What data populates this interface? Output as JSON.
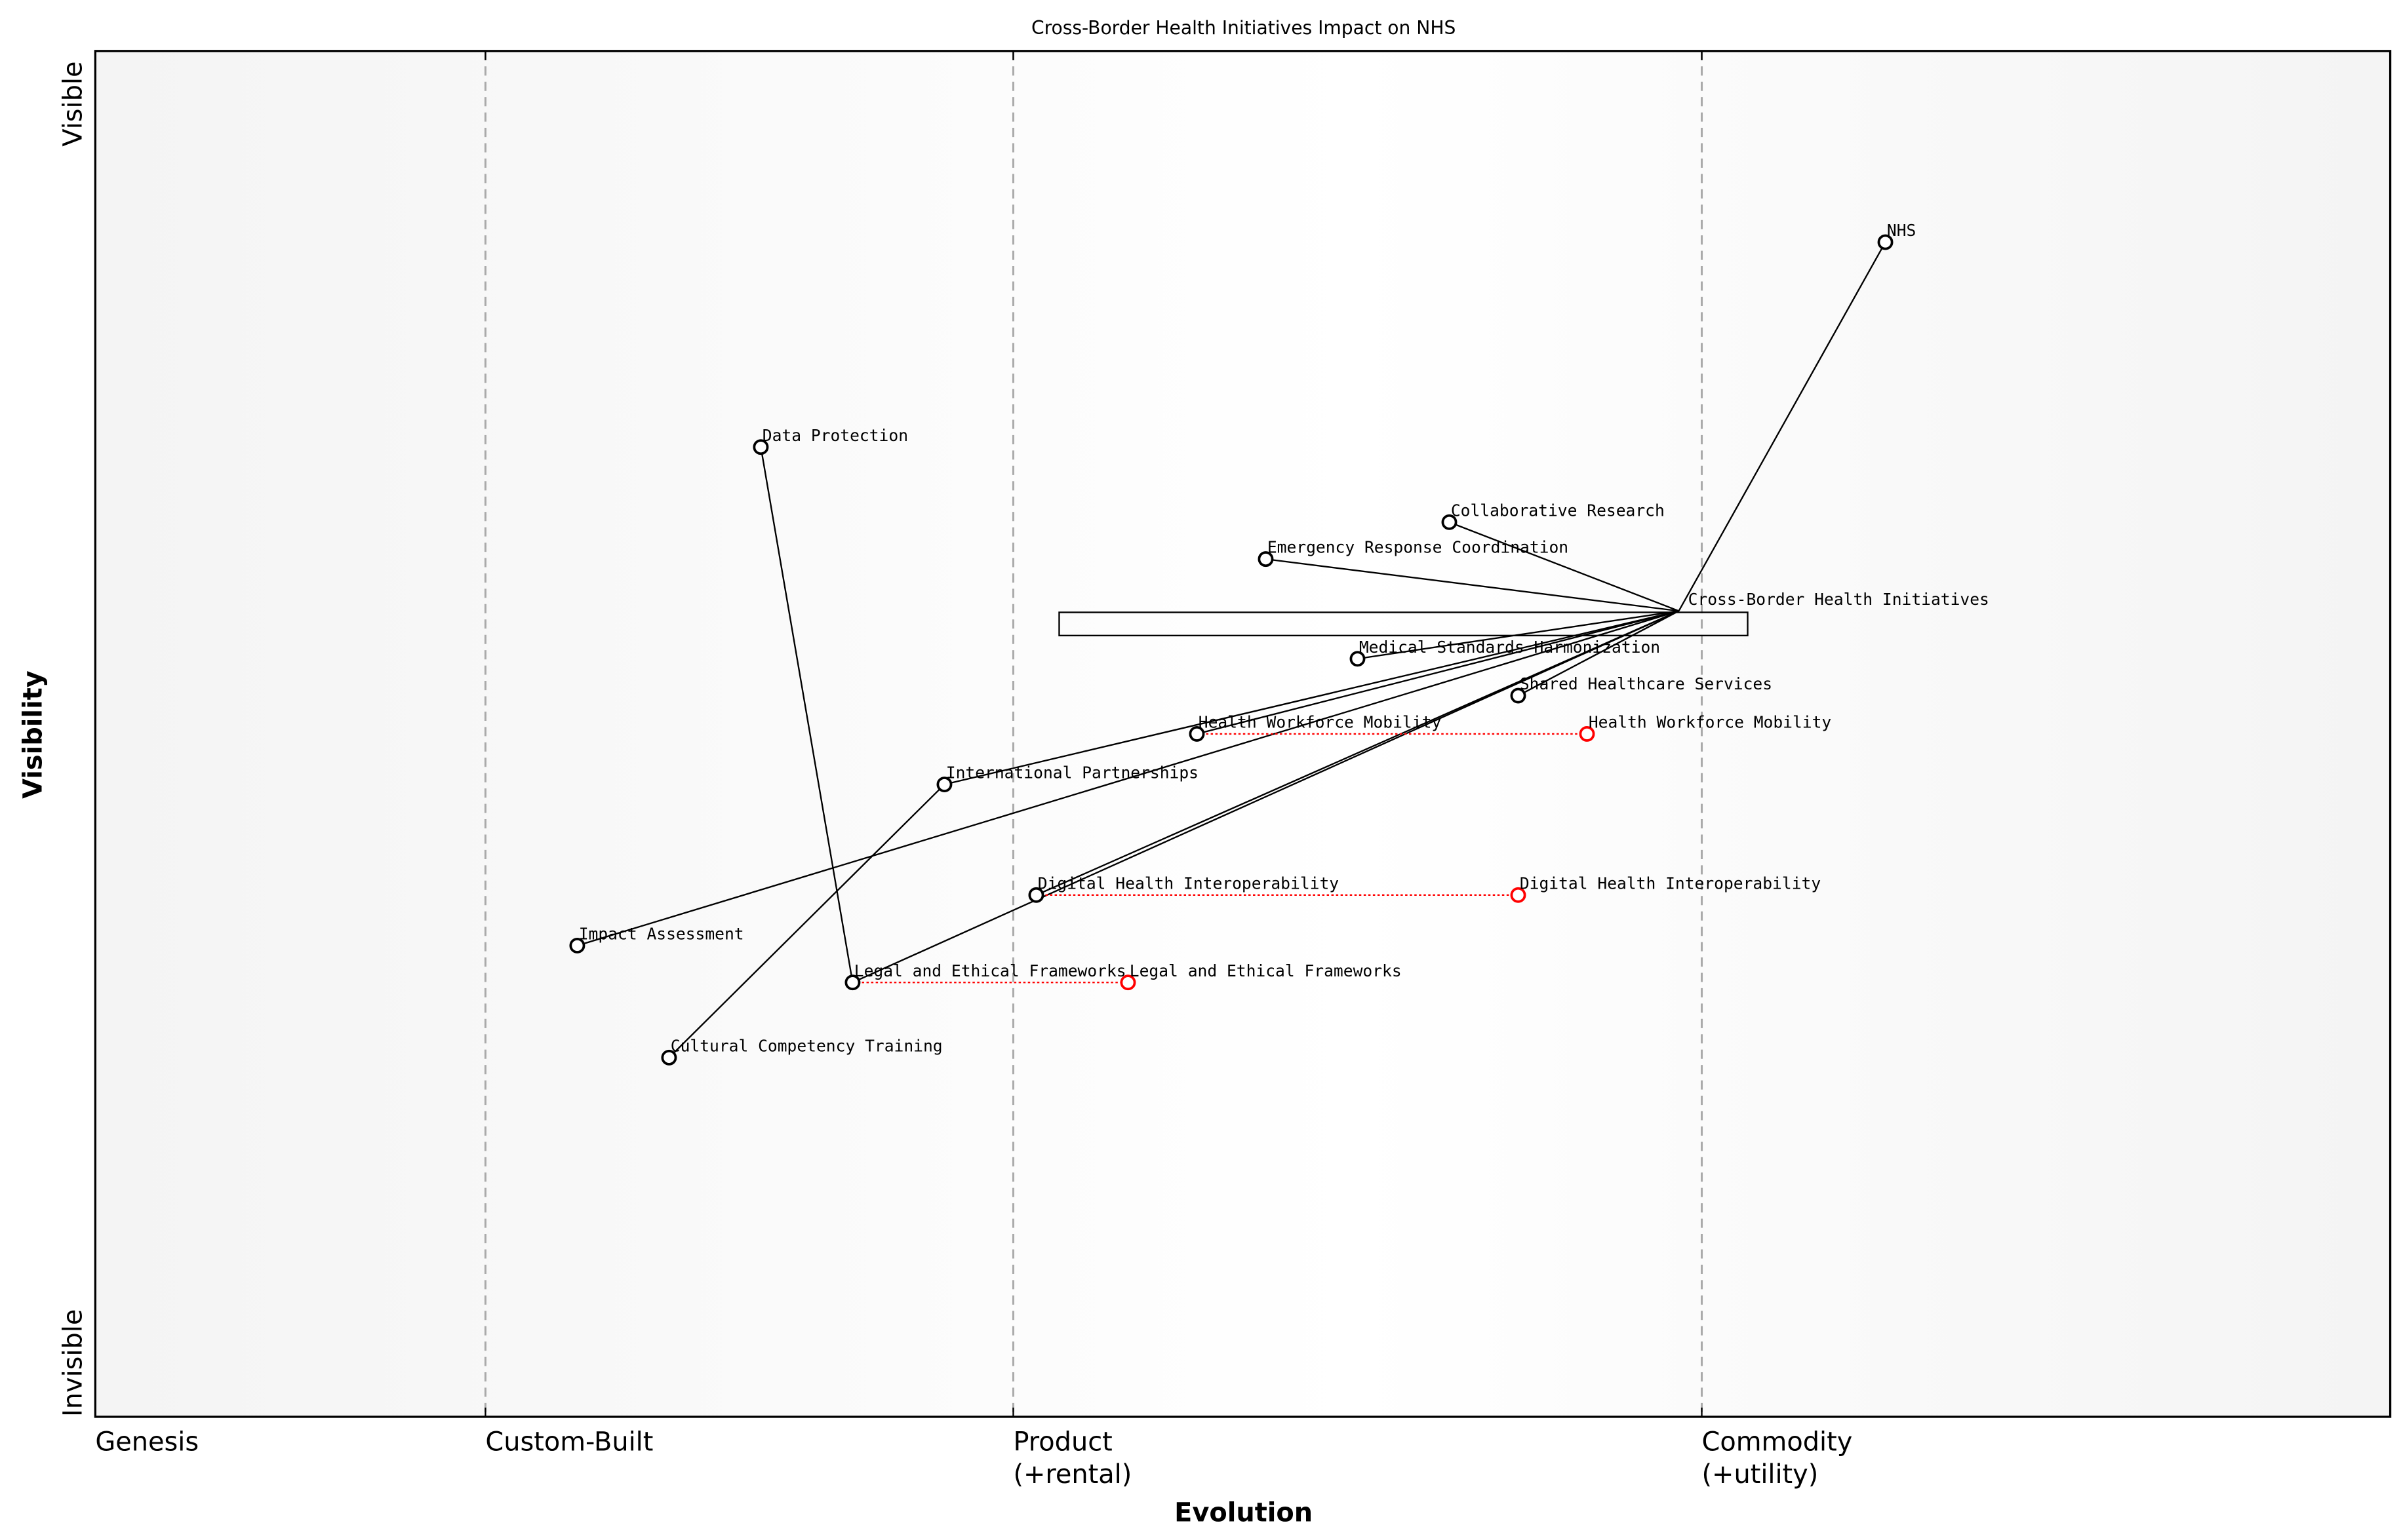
{
  "chart_data": {
    "type": "wardley-map",
    "title": "Cross-Border Health Initiatives Impact on NHS",
    "xlabel": "Evolution",
    "ylabel": "Visibility",
    "xlim": [
      0,
      1
    ],
    "ylim": [
      0,
      1
    ],
    "y_ticks": [
      {
        "value": 0.0,
        "label": "Invisible"
      },
      {
        "value": 0.95,
        "label": "Visible"
      }
    ],
    "stages": [
      {
        "value": 0.0,
        "label": "Genesis"
      },
      {
        "value": 0.17,
        "label": "Custom-Built"
      },
      {
        "value": 0.4,
        "label": "Product\n(+rental)"
      },
      {
        "value": 0.7,
        "label": "Commodity\n(+utility)"
      }
    ],
    "components": [
      {
        "id": "nhs",
        "name": "NHS",
        "evolution": 0.78,
        "visibility": 0.86
      },
      {
        "id": "cbhi",
        "name": "Cross-Border Health Initiatives",
        "evolution": 0.69,
        "visibility": 0.59,
        "marker": false
      },
      {
        "id": "dp",
        "name": "Data Protection",
        "evolution": 0.29,
        "visibility": 0.71
      },
      {
        "id": "cr",
        "name": "Collaborative Research",
        "evolution": 0.59,
        "visibility": 0.655
      },
      {
        "id": "erc",
        "name": "Emergency Response Coordination",
        "evolution": 0.51,
        "visibility": 0.628
      },
      {
        "id": "msh",
        "name": "Medical Standards Harmonization",
        "evolution": 0.55,
        "visibility": 0.555
      },
      {
        "id": "shs",
        "name": "Shared Healthcare Services",
        "evolution": 0.62,
        "visibility": 0.528
      },
      {
        "id": "hwm",
        "name": "Health Workforce Mobility",
        "evolution": 0.48,
        "visibility": 0.5
      },
      {
        "id": "ip",
        "name": "International Partnerships",
        "evolution": 0.37,
        "visibility": 0.463
      },
      {
        "id": "dhi",
        "name": "Digital Health Interoperability",
        "evolution": 0.41,
        "visibility": 0.382
      },
      {
        "id": "ia",
        "name": "Impact Assessment",
        "evolution": 0.21,
        "visibility": 0.345
      },
      {
        "id": "lef",
        "name": "Legal and Ethical Frameworks",
        "evolution": 0.33,
        "visibility": 0.318
      },
      {
        "id": "cct",
        "name": "Cultural Competency Training",
        "evolution": 0.25,
        "visibility": 0.263
      }
    ],
    "links": [
      [
        "nhs",
        "cbhi"
      ],
      [
        "cbhi",
        "cr"
      ],
      [
        "cbhi",
        "erc"
      ],
      [
        "cbhi",
        "msh"
      ],
      [
        "cbhi",
        "shs"
      ],
      [
        "cbhi",
        "hwm"
      ],
      [
        "cbhi",
        "ip"
      ],
      [
        "cbhi",
        "ia"
      ],
      [
        "cbhi",
        "dhi"
      ],
      [
        "cbhi",
        "lef"
      ],
      [
        "lef",
        "dp"
      ],
      [
        "ip",
        "cct"
      ]
    ],
    "evolutions": [
      {
        "name": "Health Workforce Mobility",
        "from": 0.48,
        "to": 0.65,
        "visibility": 0.5
      },
      {
        "name": "Digital Health Interoperability",
        "from": 0.41,
        "to": 0.62,
        "visibility": 0.382
      },
      {
        "name": "Legal and Ethical Frameworks",
        "from": 0.33,
        "to": 0.45,
        "visibility": 0.318
      }
    ],
    "pipeline": {
      "component": "Cross-Border Health Initiatives",
      "evolution_range": [
        0.42,
        0.72
      ],
      "visibility_range": [
        0.572,
        0.589
      ]
    },
    "colors": {
      "component": "#000000",
      "evolved": "#ff0000",
      "stage_line": "#aaaaaa",
      "background_edge": "#f4f4f4",
      "background_center": "#ffffff"
    }
  }
}
